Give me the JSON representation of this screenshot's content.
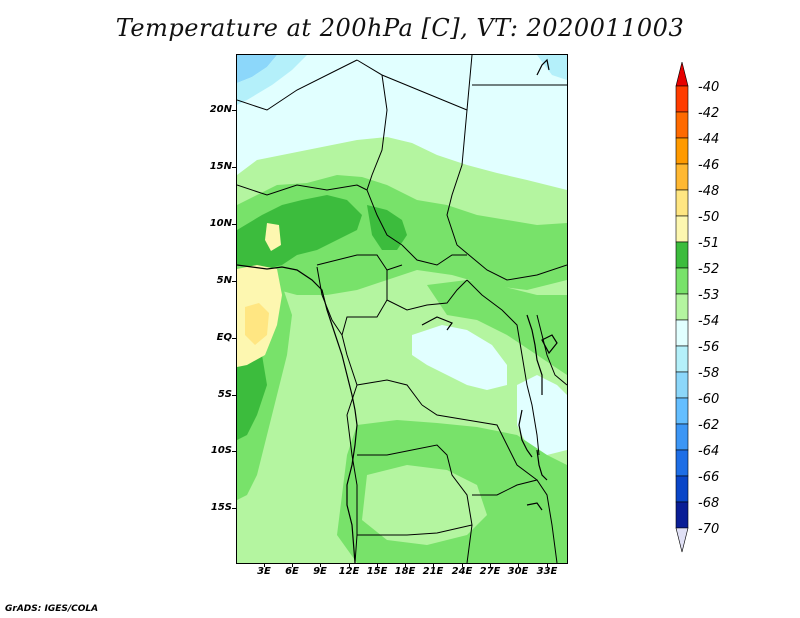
{
  "title": "Temperature at 200hPa [C], VT: 2020011003",
  "credit": "GrADS: IGES/COLA",
  "axes": {
    "lat_labels": [
      "20N",
      "15N",
      "10N",
      "5N",
      "EQ",
      "5S",
      "10S",
      "15S"
    ],
    "lon_labels": [
      "3E",
      "6E",
      "9E",
      "12E",
      "15E",
      "18E",
      "21E",
      "24E",
      "27E",
      "30E",
      "33E"
    ]
  },
  "colorbar": {
    "levels": [
      "-40",
      "-42",
      "-44",
      "-46",
      "-48",
      "-50",
      "-51",
      "-52",
      "-53",
      "-54",
      "-56",
      "-58",
      "-60",
      "-62",
      "-64",
      "-66",
      "-68",
      "-70"
    ],
    "colors": [
      "#e60000",
      "#ff3c00",
      "#ff6a00",
      "#ff9a00",
      "#ffb832",
      "#ffe682",
      "#fdf7b0",
      "#3cbc3d",
      "#78e26a",
      "#b4f5a0",
      "#e1ffff",
      "#b4f0fa",
      "#8cd7fa",
      "#64beff",
      "#3c96f5",
      "#1e6ee6",
      "#0a46c8",
      "#0a1e96",
      "#000064"
    ]
  },
  "fill_colors": {
    "dark_green": "#3cbc3d",
    "mid_green": "#78e26a",
    "light_green": "#b4f5a0",
    "pale_cyan": "#e1ffff",
    "light_blue": "#b4f0fa",
    "sky_blue": "#8cd7fa",
    "pale_yellow": "#fdf7b0",
    "yellow": "#ffe682"
  }
}
